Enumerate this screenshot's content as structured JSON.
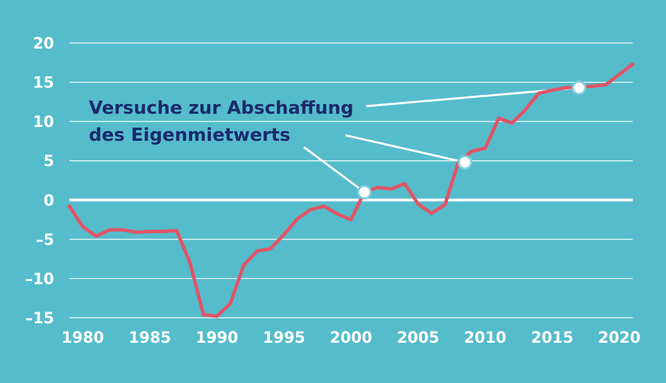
{
  "chart_data": {
    "type": "line",
    "background_color": "#55bccc",
    "line_color": "#e05466",
    "grid_color": "#ffffff",
    "annotation_color": "#1a2a6c",
    "grid": true,
    "title": "",
    "xlabel": "",
    "ylabel": "",
    "xlim": [
      1979,
      2021
    ],
    "ylim": [
      -15,
      20
    ],
    "x_ticks": [
      1980,
      1985,
      1990,
      1995,
      2000,
      2005,
      2010,
      2015,
      2020
    ],
    "y_ticks": [
      20,
      15,
      10,
      5,
      0,
      -5,
      -10,
      -15
    ],
    "y_tick_labels": [
      "20",
      "15",
      "10",
      "5",
      "0",
      "–5",
      "–10",
      "–15"
    ],
    "series": [
      {
        "x": [
          1979,
          1980,
          1981,
          1982,
          1983,
          1984,
          1985,
          1986,
          1987,
          1988,
          1989,
          1990,
          1991,
          1992,
          1993,
          1994,
          1995,
          1996,
          1997,
          1998,
          1999,
          2000,
          2001,
          2002,
          2003,
          2004,
          2005,
          2006,
          2007,
          2008,
          2009,
          2010,
          2011,
          2012,
          2013,
          2014,
          2015,
          2016,
          2017,
          2018,
          2019,
          2020,
          2021
        ],
        "values": [
          -0.8,
          -3.4,
          -4.6,
          -3.8,
          -3.8,
          -4.1,
          -4.0,
          -4.0,
          -3.9,
          -8.0,
          -14.6,
          -14.8,
          -13.2,
          -8.3,
          -6.5,
          -6.2,
          -4.4,
          -2.4,
          -1.2,
          -0.8,
          -1.8,
          -2.5,
          1.0,
          1.6,
          1.4,
          2.1,
          -0.5,
          -1.7,
          -0.6,
          4.8,
          6.2,
          6.6,
          10.4,
          9.8,
          11.5,
          13.6,
          14.0,
          14.3,
          14.4,
          14.5,
          14.7,
          16.0,
          17.3
        ]
      }
    ],
    "annotation": {
      "lines": [
        "Versuche zur Abschaffung",
        "des Eigenmietwerts"
      ],
      "markers": [
        {
          "x": 2001,
          "y": 1.0
        },
        {
          "x": 2008.5,
          "y": 4.8
        },
        {
          "x": 2017,
          "y": 14.3
        }
      ]
    }
  }
}
